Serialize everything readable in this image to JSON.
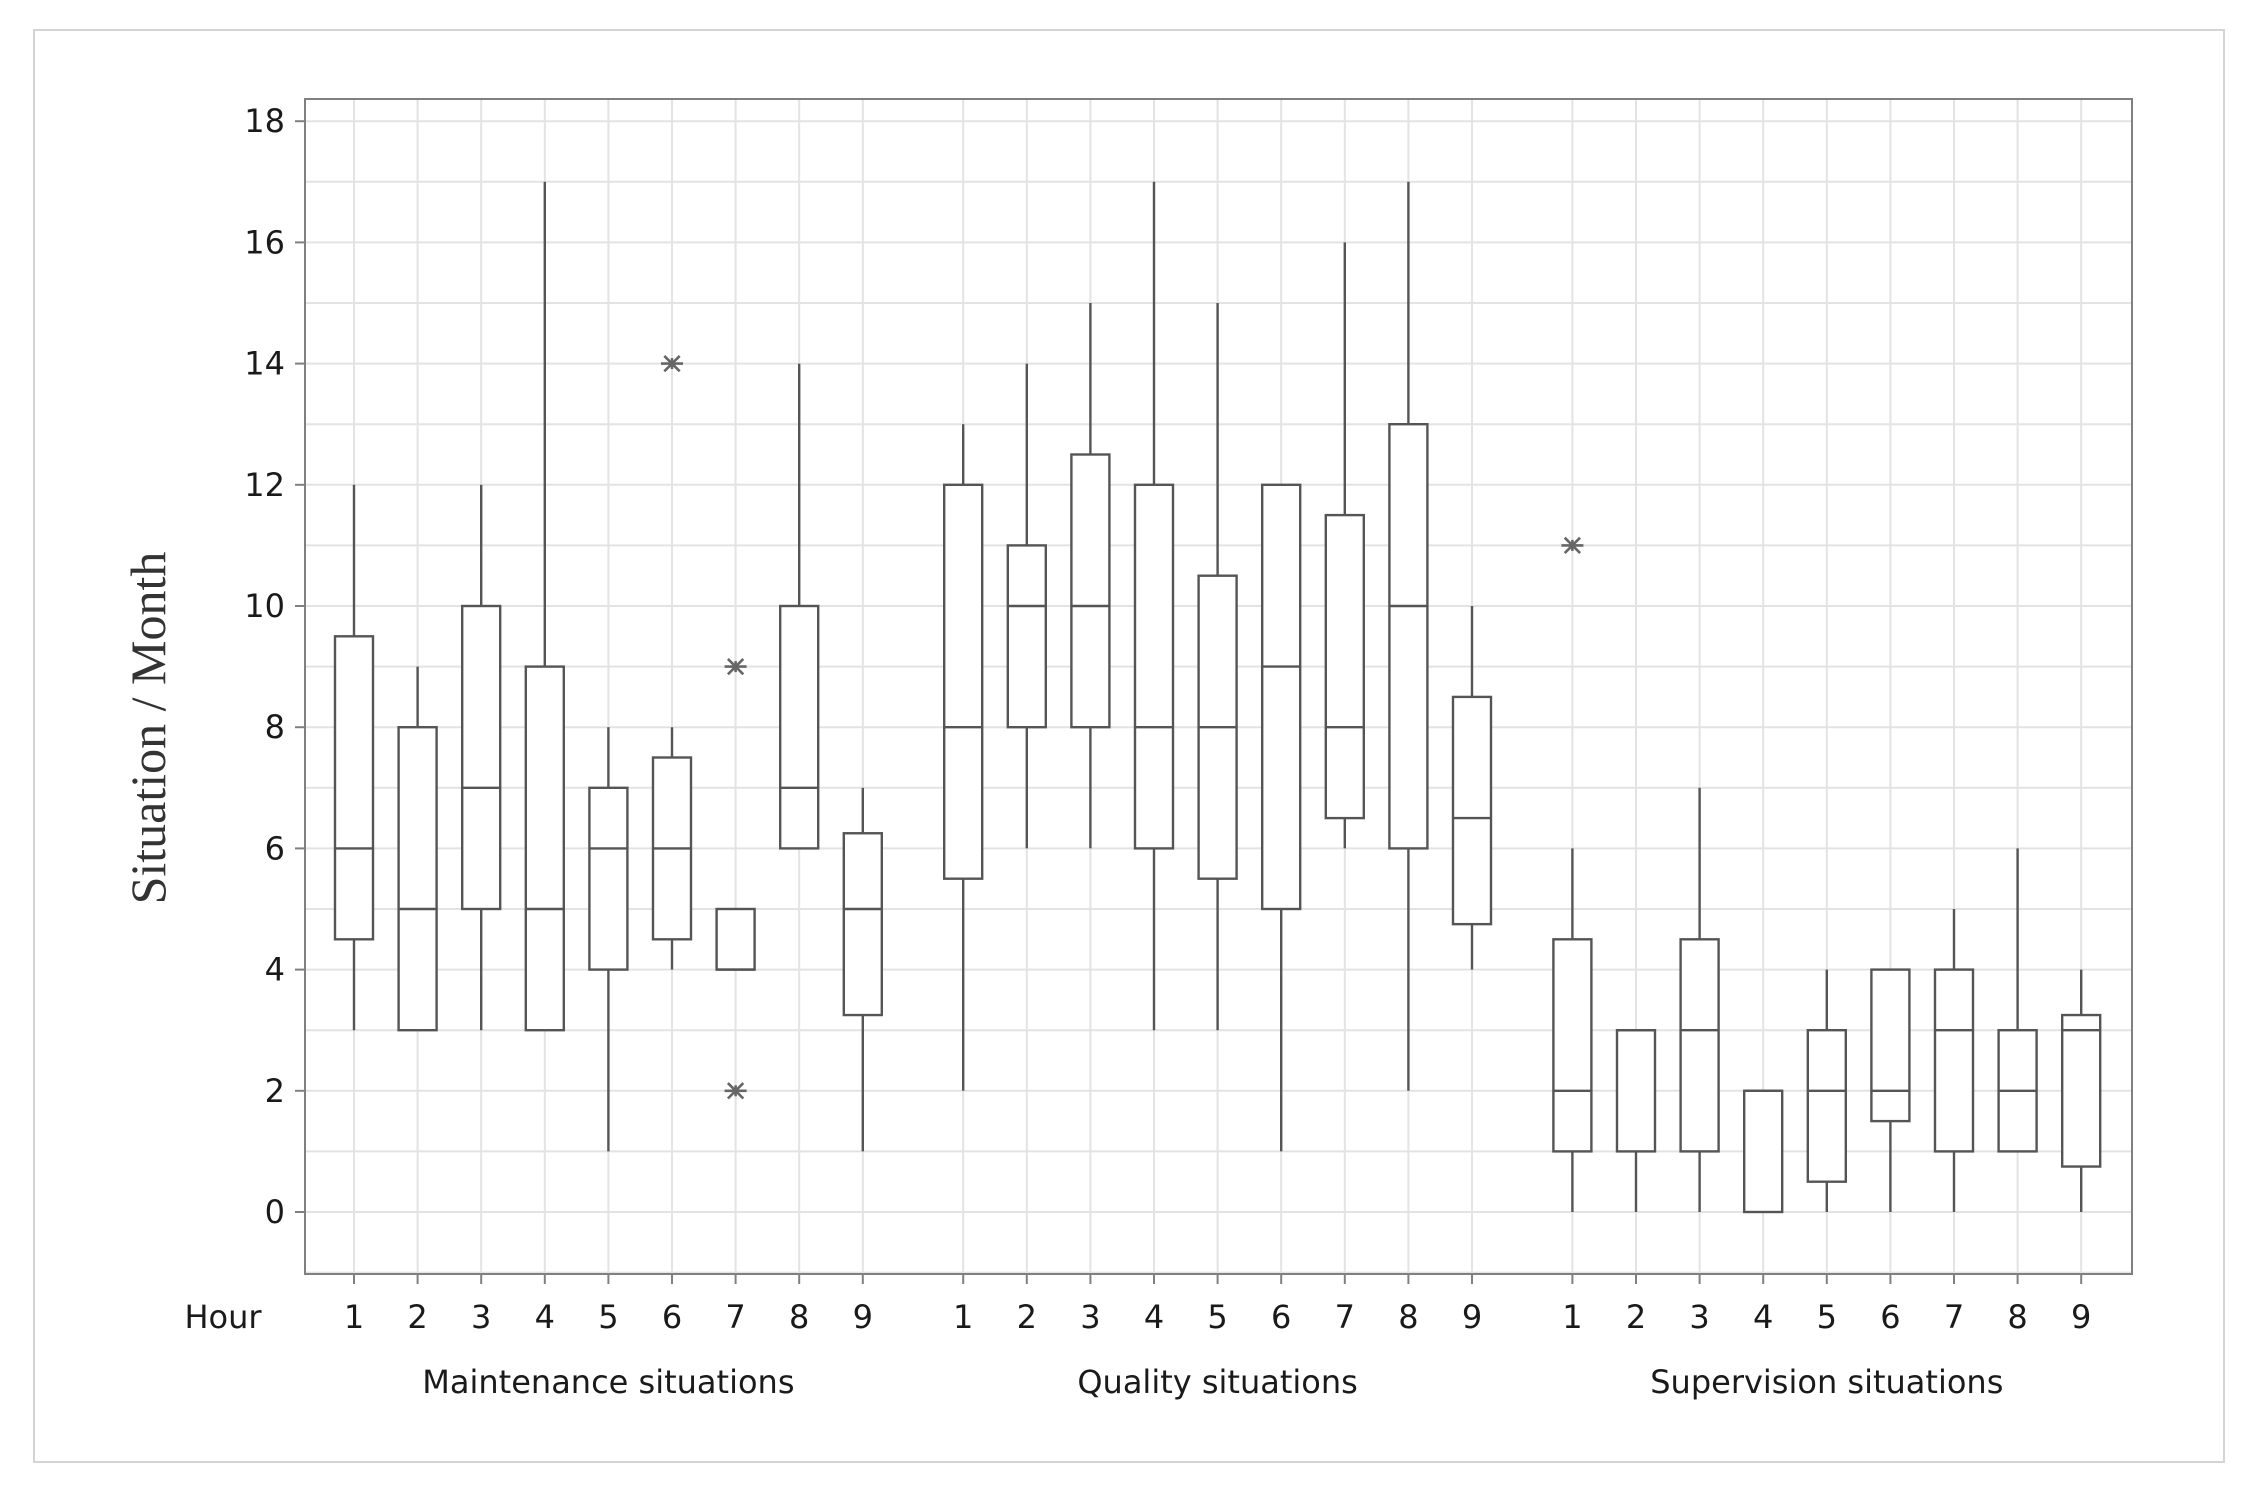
{
  "chart_data": {
    "type": "boxplot",
    "title": "",
    "ylabel": "Situation / Month",
    "xlabel_prefix": "Hour",
    "ylim": [
      -1,
      18.3
    ],
    "yticks": [
      0,
      2,
      4,
      6,
      8,
      10,
      12,
      14,
      16,
      18
    ],
    "grid": true,
    "colors": {
      "box_stroke": "#555555",
      "grid": "#e3e3e3",
      "outlier": "#666666",
      "frame": "#808080"
    },
    "groups": [
      {
        "name": "Maintenance situations",
        "hours": [
          "1",
          "2",
          "3",
          "4",
          "5",
          "6",
          "7",
          "8",
          "9"
        ],
        "boxes": [
          {
            "hour": "1",
            "min": 3,
            "q1": 4.5,
            "median": 6,
            "q3": 9.5,
            "max": 12,
            "outliers": []
          },
          {
            "hour": "2",
            "min": 3,
            "q1": 3,
            "median": 5,
            "q3": 8,
            "max": 9,
            "outliers": []
          },
          {
            "hour": "3",
            "min": 3,
            "q1": 5,
            "median": 7,
            "q3": 10,
            "max": 12,
            "outliers": []
          },
          {
            "hour": "4",
            "min": 3,
            "q1": 3,
            "median": 5,
            "q3": 9,
            "max": 17,
            "outliers": []
          },
          {
            "hour": "5",
            "min": 1,
            "q1": 4,
            "median": 6,
            "q3": 7,
            "max": 8,
            "outliers": []
          },
          {
            "hour": "6",
            "min": 4,
            "q1": 4.5,
            "median": 6,
            "q3": 7.5,
            "max": 8,
            "outliers": [
              14
            ]
          },
          {
            "hour": "7",
            "min": 4,
            "q1": 4,
            "median": 4,
            "q3": 5,
            "max": 5,
            "outliers": [
              9,
              2
            ]
          },
          {
            "hour": "8",
            "min": 6,
            "q1": 6,
            "median": 7,
            "q3": 10,
            "max": 14,
            "outliers": []
          },
          {
            "hour": "9",
            "min": 1,
            "q1": 3.25,
            "median": 5,
            "q3": 6.25,
            "max": 7,
            "outliers": []
          }
        ]
      },
      {
        "name": "Quality situations",
        "hours": [
          "1",
          "2",
          "3",
          "4",
          "5",
          "6",
          "7",
          "8",
          "9"
        ],
        "boxes": [
          {
            "hour": "1",
            "min": 2,
            "q1": 5.5,
            "median": 8,
            "q3": 12,
            "max": 13,
            "outliers": []
          },
          {
            "hour": "2",
            "min": 6,
            "q1": 8,
            "median": 10,
            "q3": 11,
            "max": 14,
            "outliers": []
          },
          {
            "hour": "3",
            "min": 6,
            "q1": 8,
            "median": 10,
            "q3": 12.5,
            "max": 15,
            "outliers": []
          },
          {
            "hour": "4",
            "min": 3,
            "q1": 6,
            "median": 8,
            "q3": 12,
            "max": 17,
            "outliers": []
          },
          {
            "hour": "5",
            "min": 3,
            "q1": 5.5,
            "median": 8,
            "q3": 10.5,
            "max": 15,
            "outliers": []
          },
          {
            "hour": "6",
            "min": 1,
            "q1": 5,
            "median": 9,
            "q3": 12,
            "max": 12,
            "outliers": []
          },
          {
            "hour": "7",
            "min": 6,
            "q1": 6.5,
            "median": 8,
            "q3": 11.5,
            "max": 16,
            "outliers": []
          },
          {
            "hour": "8",
            "min": 2,
            "q1": 6,
            "median": 10,
            "q3": 13,
            "max": 17,
            "outliers": []
          },
          {
            "hour": "9",
            "min": 4,
            "q1": 4.75,
            "median": 6.5,
            "q3": 8.5,
            "max": 10,
            "outliers": []
          }
        ]
      },
      {
        "name": "Supervision situations",
        "hours": [
          "1",
          "2",
          "3",
          "4",
          "5",
          "6",
          "7",
          "8",
          "9"
        ],
        "boxes": [
          {
            "hour": "1",
            "min": 0,
            "q1": 1,
            "median": 2,
            "q3": 4.5,
            "max": 6,
            "outliers": [
              11
            ]
          },
          {
            "hour": "2",
            "min": 0,
            "q1": 1,
            "median": 3,
            "q3": 3,
            "max": 3,
            "outliers": []
          },
          {
            "hour": "3",
            "min": 0,
            "q1": 1,
            "median": 3,
            "q3": 4.5,
            "max": 7,
            "outliers": []
          },
          {
            "hour": "4",
            "min": 0,
            "q1": 0,
            "median": 2,
            "q3": 2,
            "max": 2,
            "outliers": []
          },
          {
            "hour": "5",
            "min": 0,
            "q1": 0.5,
            "median": 2,
            "q3": 3,
            "max": 4,
            "outliers": []
          },
          {
            "hour": "6",
            "min": 0,
            "q1": 1.5,
            "median": 2,
            "q3": 4,
            "max": 4,
            "outliers": []
          },
          {
            "hour": "7",
            "min": 0,
            "q1": 1,
            "median": 3,
            "q3": 4,
            "max": 5,
            "outliers": []
          },
          {
            "hour": "8",
            "min": 1,
            "q1": 1,
            "median": 2,
            "q3": 3,
            "max": 6,
            "outliers": []
          },
          {
            "hour": "9",
            "min": 0,
            "q1": 0.75,
            "median": 3,
            "q3": 3.25,
            "max": 4,
            "outliers": []
          }
        ]
      }
    ]
  }
}
